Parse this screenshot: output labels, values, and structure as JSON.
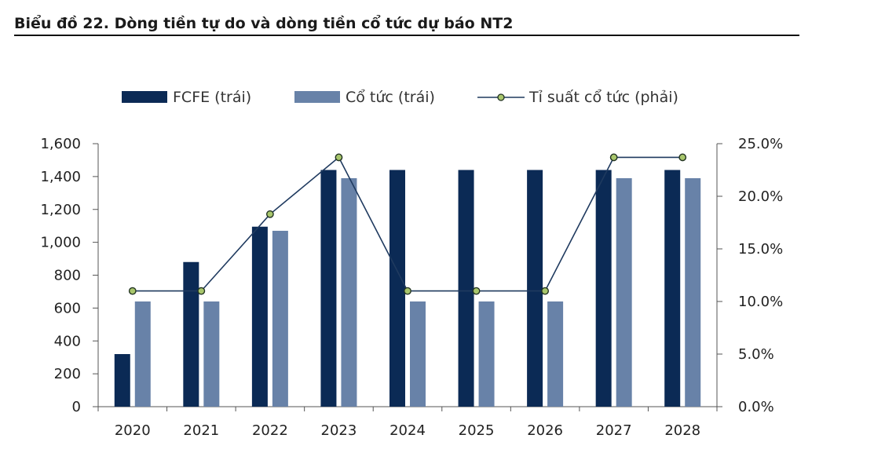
{
  "title": "Biểu đồ 22. Dòng tiền tự do và dòng tiền cổ tức dự báo NT2",
  "chart_data": {
    "type": "bar",
    "title": "Biểu đồ 22. Dòng tiền tự do và dòng tiền cổ tức dự báo NT2",
    "categories": [
      "2020",
      "2021",
      "2022",
      "2023",
      "2024",
      "2025",
      "2026",
      "2027",
      "2028"
    ],
    "series": [
      {
        "name": "FCFE (trái)",
        "type": "bar",
        "axis": "left",
        "color": "#0b2a55",
        "values": [
          320,
          880,
          1095,
          1440,
          1440,
          1440,
          1440,
          1440,
          1440
        ]
      },
      {
        "name": "Cổ tức (trái)",
        "type": "bar",
        "axis": "left",
        "color": "#6882a8",
        "values": [
          640,
          640,
          1070,
          1390,
          640,
          640,
          640,
          1390,
          1390
        ]
      },
      {
        "name": "Tỉ suất cổ tức (phải)",
        "type": "line",
        "axis": "right",
        "color": "#1f3a5f",
        "marker_color": "#a8c66c",
        "values": [
          11.0,
          11.0,
          18.3,
          23.7,
          11.0,
          11.0,
          11.0,
          23.7,
          23.7
        ]
      }
    ],
    "ylim_left": [
      0,
      1600
    ],
    "yticks_left": [
      "0",
      "200",
      "400",
      "600",
      "800",
      "1,000",
      "1,200",
      "1,400",
      "1,600"
    ],
    "ylim_right": [
      0,
      25
    ],
    "yticks_right": [
      "0.0%",
      "5.0%",
      "10.0%",
      "15.0%",
      "20.0%",
      "25.0%"
    ],
    "legend_position": "top",
    "grid": false
  }
}
